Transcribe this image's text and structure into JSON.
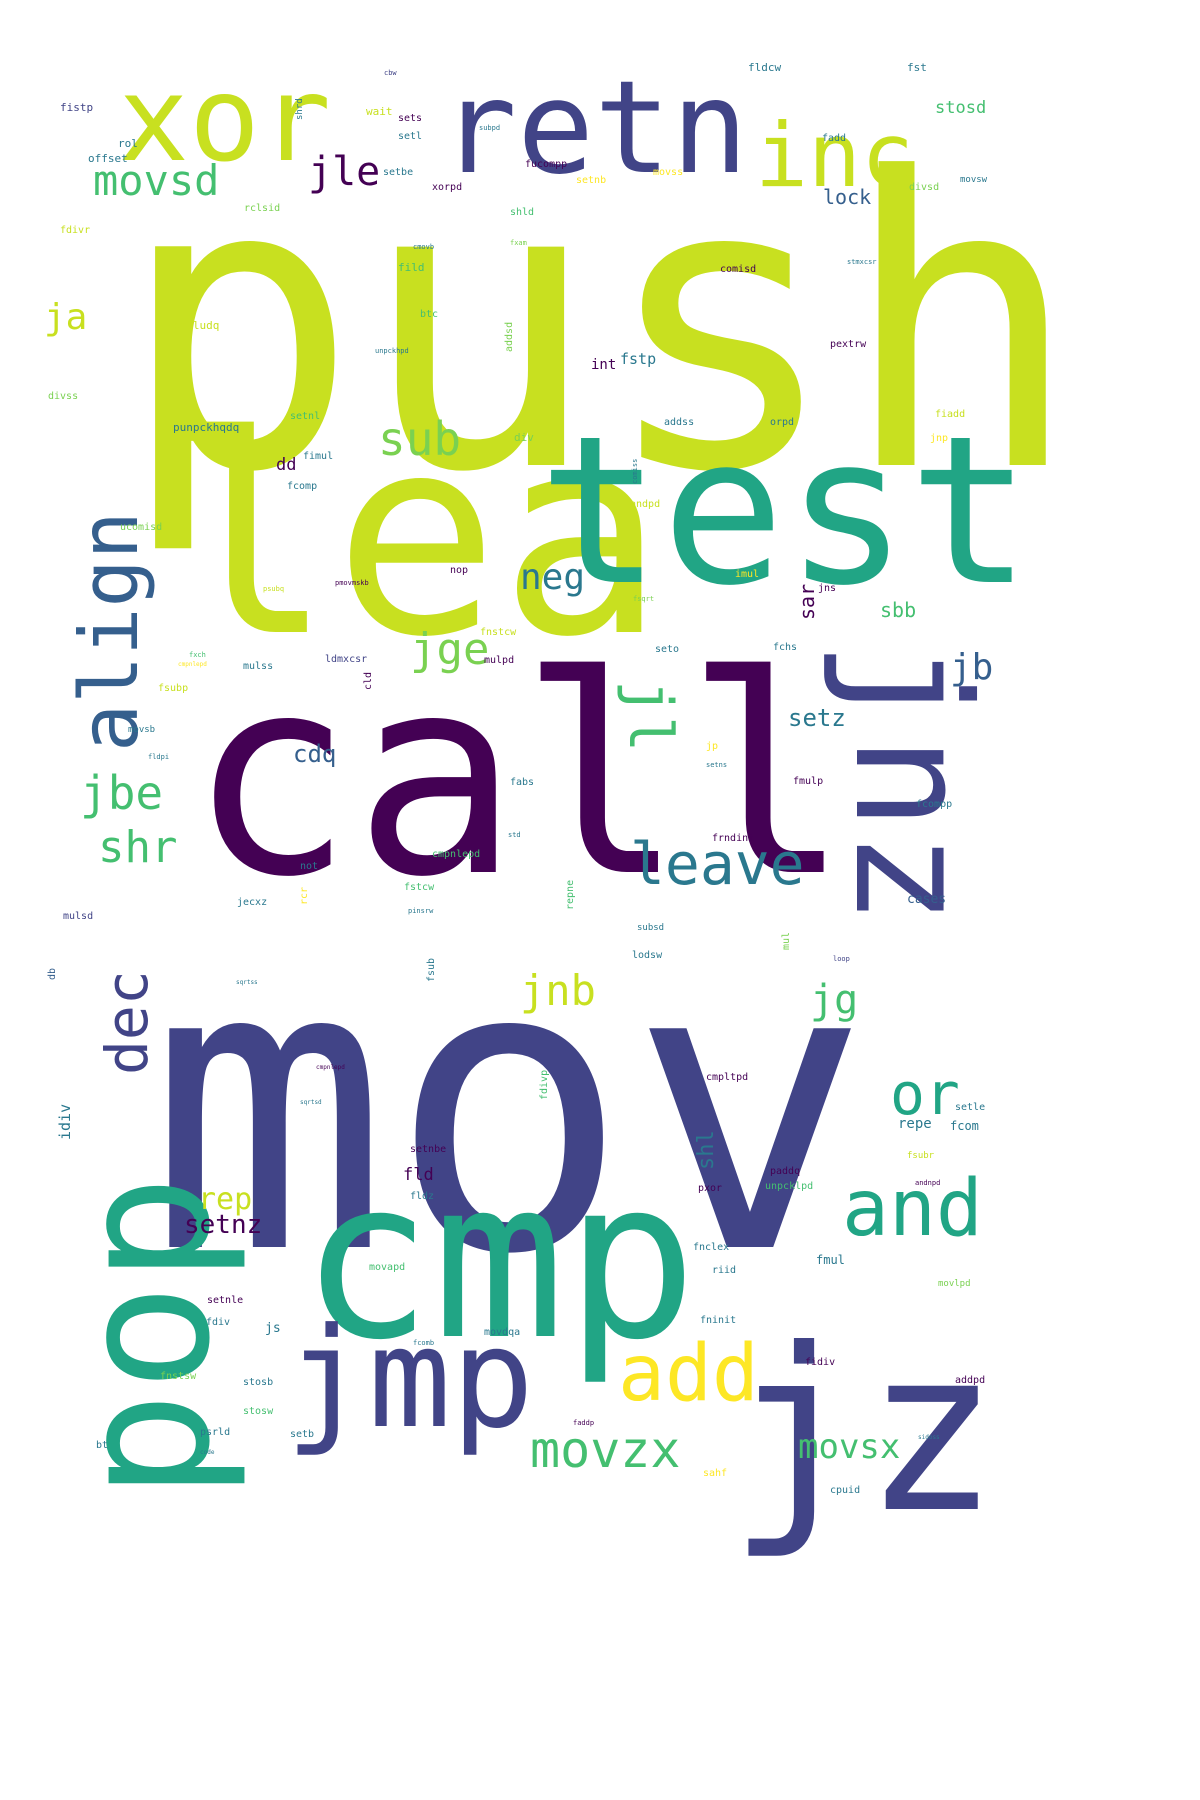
{
  "palette": {
    "dark_purple": "#440154",
    "indigo": "#414487",
    "blue": "#355f8d",
    "teal": "#2a788e",
    "green_teal": "#21a585",
    "green": "#44bf70",
    "light_green": "#7ad151",
    "yellow_green": "#c8e020",
    "yellow": "#fde725"
  },
  "words": [
    {
      "text": "push",
      "color": "yellow_green"
    },
    {
      "text": "mov",
      "color": "indigo"
    },
    {
      "text": "call",
      "color": "dark_purple"
    },
    {
      "text": "lea",
      "color": "yellow_green"
    },
    {
      "text": "test",
      "color": "green_teal"
    },
    {
      "text": "jz",
      "color": "indigo"
    },
    {
      "text": "cmp",
      "color": "green_teal"
    },
    {
      "text": "pop",
      "color": "green_teal"
    },
    {
      "text": "retn",
      "color": "indigo"
    },
    {
      "text": "xor",
      "color": "yellow_green"
    },
    {
      "text": "jnz",
      "color": "indigo"
    },
    {
      "text": "inc",
      "color": "yellow_green"
    },
    {
      "text": "jmp",
      "color": "indigo"
    },
    {
      "text": "align",
      "color": "blue"
    },
    {
      "text": "and",
      "color": "green_teal"
    },
    {
      "text": "add",
      "color": "yellow"
    },
    {
      "text": "leave",
      "color": "teal"
    },
    {
      "text": "dec",
      "color": "indigo"
    },
    {
      "text": "or",
      "color": "green_teal"
    },
    {
      "text": "jl",
      "color": "green"
    },
    {
      "text": "movzx",
      "color": "green"
    },
    {
      "text": "movsd",
      "color": "green"
    },
    {
      "text": "sub",
      "color": "light_green"
    },
    {
      "text": "jbe",
      "color": "green"
    },
    {
      "text": "jge",
      "color": "light_green"
    },
    {
      "text": "shr",
      "color": "green"
    },
    {
      "text": "jle",
      "color": "dark_purple"
    },
    {
      "text": "jnb",
      "color": "yellow_green"
    },
    {
      "text": "jg",
      "color": "green"
    },
    {
      "text": "neg",
      "color": "teal"
    },
    {
      "text": "movsx",
      "color": "green"
    },
    {
      "text": "jb",
      "color": "blue"
    },
    {
      "text": "ja",
      "color": "yellow_green"
    },
    {
      "text": "rep",
      "color": "yellow_green"
    },
    {
      "text": "setnz",
      "color": "dark_purple"
    },
    {
      "text": "cdq",
      "color": "blue"
    },
    {
      "text": "setz",
      "color": "teal"
    },
    {
      "text": "shl",
      "color": "teal"
    },
    {
      "text": "sbb",
      "color": "green"
    },
    {
      "text": "sar",
      "color": "dark_purple"
    },
    {
      "text": "lock",
      "color": "blue"
    },
    {
      "text": "stosd",
      "color": "green"
    },
    {
      "text": "dd",
      "color": "dark_purple"
    },
    {
      "text": "fld",
      "color": "dark_purple"
    },
    {
      "text": "int",
      "color": "dark_purple"
    },
    {
      "text": "fstp",
      "color": "teal"
    },
    {
      "text": "idiv",
      "color": "teal"
    },
    {
      "text": "repe",
      "color": "teal"
    },
    {
      "text": "fcom",
      "color": "teal"
    },
    {
      "text": "fmul",
      "color": "teal"
    },
    {
      "text": "cases",
      "color": "blue"
    },
    {
      "text": "fldcw",
      "color": "teal"
    },
    {
      "text": "fst",
      "color": "teal"
    },
    {
      "text": "fistp",
      "color": "indigo"
    },
    {
      "text": "offset",
      "color": "teal"
    },
    {
      "text": "rol",
      "color": "teal"
    },
    {
      "text": "wait",
      "color": "yellow_green"
    },
    {
      "text": "sets",
      "color": "dark_purple"
    },
    {
      "text": "setl",
      "color": "teal"
    },
    {
      "text": "setbe",
      "color": "teal"
    },
    {
      "text": "xorpd",
      "color": "dark_purple"
    },
    {
      "text": "fucompp",
      "color": "dark_purple"
    },
    {
      "text": "setnb",
      "color": "yellow"
    },
    {
      "text": "movss",
      "color": "yellow"
    },
    {
      "text": "fadd",
      "color": "teal"
    },
    {
      "text": "divsd",
      "color": "light_green"
    },
    {
      "text": "movsw",
      "color": "teal"
    },
    {
      "text": "rclsid",
      "color": "light_green"
    },
    {
      "text": "shld",
      "color": "green"
    },
    {
      "text": "fdivr",
      "color": "yellow_green"
    },
    {
      "text": "fild",
      "color": "green"
    },
    {
      "text": "comisd",
      "color": "dark_purple"
    },
    {
      "text": "pmuludq",
      "color": "yellow_green"
    },
    {
      "text": "btc",
      "color": "green"
    },
    {
      "text": "addsd",
      "color": "light_green"
    },
    {
      "text": "pextrw",
      "color": "dark_purple"
    },
    {
      "text": "divss",
      "color": "light_green"
    },
    {
      "text": "setnl",
      "color": "green"
    },
    {
      "text": "punpckhqdq",
      "color": "teal"
    },
    {
      "text": "addss",
      "color": "teal"
    },
    {
      "text": "orpd",
      "color": "teal"
    },
    {
      "text": "fiadd",
      "color": "yellow_green"
    },
    {
      "text": "fimul",
      "color": "teal"
    },
    {
      "text": "div",
      "color": "light_green"
    },
    {
      "text": "jnp",
      "color": "yellow"
    },
    {
      "text": "fcomp",
      "color": "teal"
    },
    {
      "text": "andpd",
      "color": "yellow_green"
    },
    {
      "text": "ucomisd",
      "color": "light_green"
    },
    {
      "text": "nop",
      "color": "dark_purple"
    },
    {
      "text": "imul",
      "color": "yellow"
    },
    {
      "text": "jns",
      "color": "dark_purple"
    },
    {
      "text": "fchs",
      "color": "teal"
    },
    {
      "text": "fnstcw",
      "color": "yellow_green"
    },
    {
      "text": "seto",
      "color": "teal"
    },
    {
      "text": "mulss",
      "color": "teal"
    },
    {
      "text": "ldmxcsr",
      "color": "indigo"
    },
    {
      "text": "mulpd",
      "color": "dark_purple"
    },
    {
      "text": "fsubp",
      "color": "yellow_green"
    },
    {
      "text": "movsb",
      "color": "teal"
    },
    {
      "text": "jp",
      "color": "yellow"
    },
    {
      "text": "fabs",
      "color": "teal"
    },
    {
      "text": "fmulp",
      "color": "dark_purple"
    },
    {
      "text": "fcompp",
      "color": "teal"
    },
    {
      "text": "frndint",
      "color": "dark_purple"
    },
    {
      "text": "not",
      "color": "teal"
    },
    {
      "text": "cmpnlepd",
      "color": "green"
    },
    {
      "text": "fstcw",
      "color": "green"
    },
    {
      "text": "jecxz",
      "color": "teal"
    },
    {
      "text": "mulsd",
      "color": "indigo"
    },
    {
      "text": "subsd",
      "color": "teal"
    },
    {
      "text": "lodsw",
      "color": "teal"
    },
    {
      "text": "db",
      "color": "blue"
    },
    {
      "text": "fsub",
      "color": "teal"
    },
    {
      "text": "cmpltpd",
      "color": "dark_purple"
    },
    {
      "text": "setle",
      "color": "teal"
    },
    {
      "text": "setnbe",
      "color": "dark_purple"
    },
    {
      "text": "fsubr",
      "color": "yellow_green"
    },
    {
      "text": "paddq",
      "color": "dark_purple"
    },
    {
      "text": "pxor",
      "color": "dark_purple"
    },
    {
      "text": "unpcklpd",
      "color": "green"
    },
    {
      "text": "fldz",
      "color": "teal"
    },
    {
      "text": "fnclex",
      "color": "teal"
    },
    {
      "text": "riid",
      "color": "teal"
    },
    {
      "text": "movapd",
      "color": "green"
    },
    {
      "text": "movlpd",
      "color": "light_green"
    },
    {
      "text": "setnle",
      "color": "dark_purple"
    },
    {
      "text": "fdiv",
      "color": "teal"
    },
    {
      "text": "js",
      "color": "teal"
    },
    {
      "text": "fninit",
      "color": "teal"
    },
    {
      "text": "movdqa",
      "color": "teal"
    },
    {
      "text": "fidiv",
      "color": "dark_purple"
    },
    {
      "text": "addpd",
      "color": "dark_purple"
    },
    {
      "text": "fnstsw",
      "color": "light_green"
    },
    {
      "text": "stosb",
      "color": "teal"
    },
    {
      "text": "stosw",
      "color": "green"
    },
    {
      "text": "psrld",
      "color": "teal"
    },
    {
      "text": "setb",
      "color": "teal"
    },
    {
      "text": "bt",
      "color": "teal"
    },
    {
      "text": "sahf",
      "color": "yellow"
    },
    {
      "text": "cpuid",
      "color": "teal"
    },
    {
      "text": "repne",
      "color": "green"
    },
    {
      "text": "rcr",
      "color": "yellow"
    },
    {
      "text": "fdivp",
      "color": "green"
    },
    {
      "text": "mul",
      "color": "light_green"
    },
    {
      "text": "cld",
      "color": "dark_purple"
    },
    {
      "text": "shrd",
      "color": "teal"
    },
    {
      "text": "cbw",
      "color": "indigo"
    },
    {
      "text": "subpd",
      "color": "teal"
    },
    {
      "text": "cmovb",
      "color": "teal"
    },
    {
      "text": "fxam",
      "color": "light_green"
    },
    {
      "text": "stmxcsr",
      "color": "teal"
    },
    {
      "text": "unpckhpd",
      "color": "teal"
    },
    {
      "text": "comiss",
      "color": "teal"
    },
    {
      "text": "psubq",
      "color": "yellow_green"
    },
    {
      "text": "pmovmskb",
      "color": "dark_purple"
    },
    {
      "text": "fxch",
      "color": "green"
    },
    {
      "text": "fsqrt",
      "color": "light_green"
    },
    {
      "text": "cmpnlepd",
      "color": "yellow"
    },
    {
      "text": "fldpi",
      "color": "teal"
    },
    {
      "text": "setns",
      "color": "teal"
    },
    {
      "text": "std",
      "color": "teal"
    },
    {
      "text": "pinsrw",
      "color": "teal"
    },
    {
      "text": "loop",
      "color": "indigo"
    },
    {
      "text": "sqrtss",
      "color": "teal"
    },
    {
      "text": "cmpnlepd",
      "color": "dark_purple"
    },
    {
      "text": "sqrtsd",
      "color": "teal"
    },
    {
      "text": "andnpd",
      "color": "dark_purple"
    },
    {
      "text": "fcomb",
      "color": "teal"
    },
    {
      "text": "faddp",
      "color": "dark_purple"
    },
    {
      "text": "sidoss",
      "color": "teal"
    },
    {
      "text": "code",
      "color": "teal"
    }
  ]
}
